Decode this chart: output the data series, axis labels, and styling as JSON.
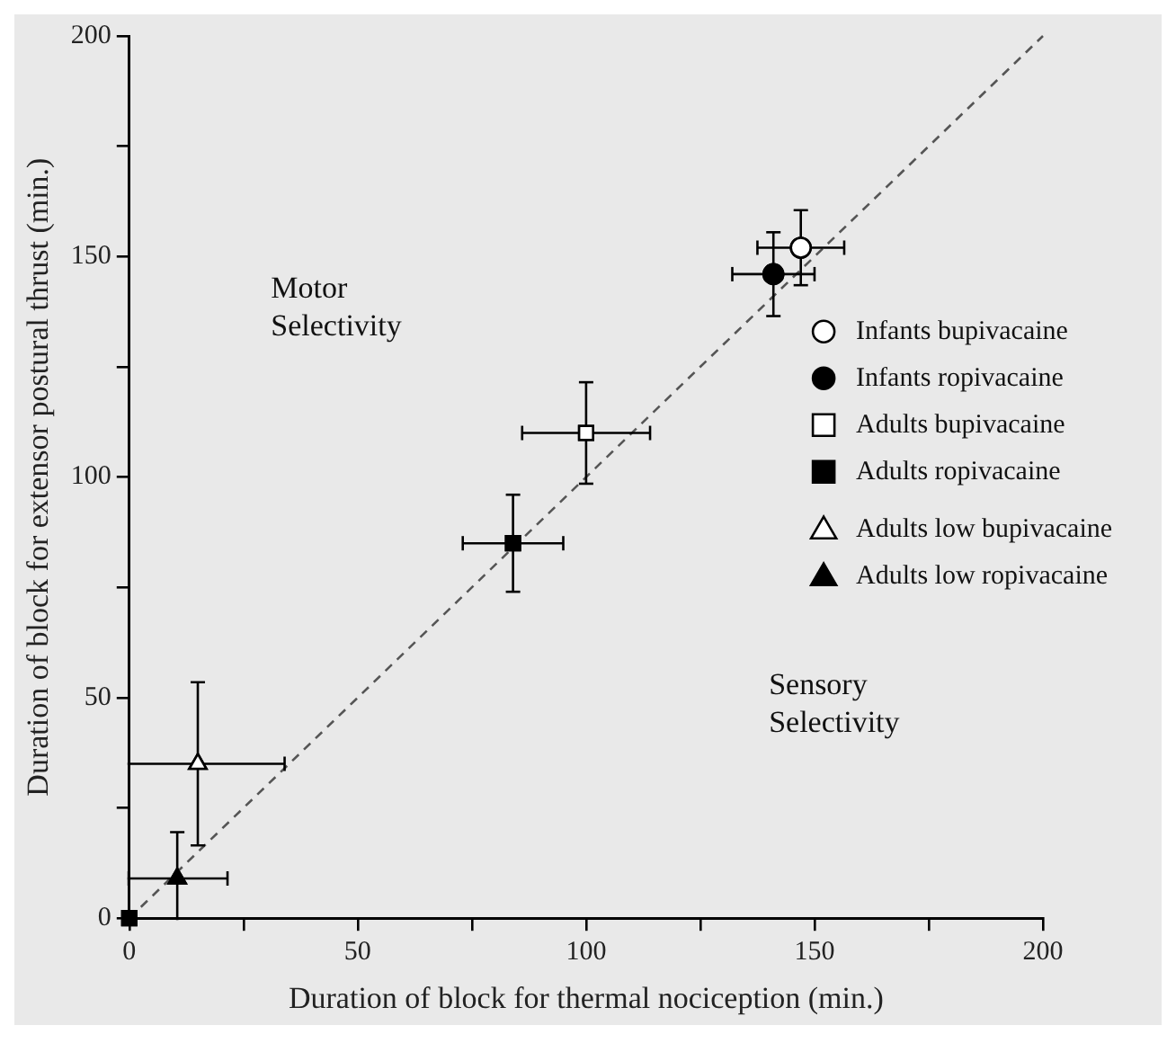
{
  "chart_data": {
    "type": "scatter",
    "xlabel": "Duration of block for thermal nociception (min.)",
    "ylabel": "Duration of block for extensor postural thrust (min.)",
    "xlim": [
      0,
      200
    ],
    "ylim": [
      0,
      200
    ],
    "xticks": [
      0,
      {
        "value": 25,
        "label": null
      },
      50,
      {
        "value": 75,
        "label": null
      },
      100,
      {
        "value": 125,
        "label": null
      },
      150,
      {
        "value": 175,
        "label": null
      },
      200
    ],
    "yticks": [
      0,
      {
        "value": 25,
        "label": null
      },
      50,
      {
        "value": 75,
        "label": null
      },
      100,
      {
        "value": 125,
        "label": null
      },
      150,
      {
        "value": 175,
        "label": null
      },
      200
    ],
    "grid": false,
    "legend": "right",
    "annotations": [
      "Motor\nSelectivity",
      "Sensory\nSelectivity"
    ],
    "series": [
      {
        "type": "line",
        "x": [
          0,
          200
        ],
        "values": [
          0,
          200
        ],
        "color": "#555555",
        "line_style": "dashed"
      },
      {
        "name": "Infants bupivacaine",
        "type": "scatter",
        "marker": "circle",
        "color": "#ffffff",
        "x": [
          147
        ],
        "values": [
          152
        ],
        "xerrors": [
          9.5
        ],
        "errors": [
          8.5
        ]
      },
      {
        "name": "Infants ropivacaine",
        "type": "scatter",
        "marker": "circle",
        "color": "#000000",
        "x": [
          141
        ],
        "values": [
          146
        ],
        "xerrors": [
          9
        ],
        "errors": [
          9.5
        ]
      },
      {
        "name": "Adults bupivacaine",
        "type": "scatter",
        "marker": "square",
        "color": "#ffffff",
        "x": [
          100
        ],
        "values": [
          110
        ],
        "xerrors": [
          14
        ],
        "errors": [
          11.5
        ]
      },
      {
        "name": "Adults ropivacaine",
        "type": "scatter",
        "marker": "square",
        "color": "#000000",
        "x": [
          84
        ],
        "values": [
          85
        ],
        "xerrors": [
          11
        ],
        "errors": [
          11
        ]
      },
      {
        "name": "Adults low bupivacaine",
        "type": "scatter",
        "marker": "triangle",
        "color": "#ffffff",
        "x": [
          15
        ],
        "values": [
          35
        ],
        "xerrors": [
          19
        ],
        "errors": [
          18.5
        ]
      },
      {
        "name": "Adults low ropivacaine",
        "type": "scatter",
        "marker": "triangle",
        "color": "#000000",
        "x": [
          10.5
        ],
        "values": [
          9
        ],
        "xerrors": [
          11
        ],
        "errors": [
          10.5
        ]
      },
      {
        "type": "scatter",
        "marker": "square",
        "color": "#000000",
        "x": [
          0
        ],
        "values": [
          0
        ]
      }
    ]
  }
}
